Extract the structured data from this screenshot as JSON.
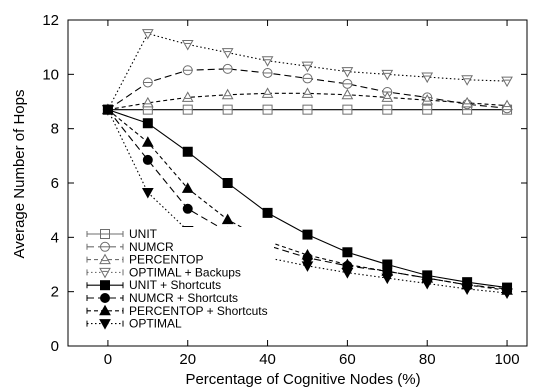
{
  "chart_data": {
    "type": "line",
    "title": "",
    "xlabel": "Percentage of Cognitive Nodes (%)",
    "ylabel": "Average Number of Hops",
    "xlim": [
      -10,
      105
    ],
    "ylim": [
      0,
      12
    ],
    "xticks": [
      0,
      20,
      40,
      60,
      80,
      100
    ],
    "yticks": [
      0,
      2,
      4,
      6,
      8,
      10,
      12
    ],
    "grid": false,
    "legend_position": "bottom-left",
    "x": [
      0,
      10,
      20,
      30,
      40,
      50,
      60,
      70,
      80,
      90,
      100
    ],
    "series": [
      {
        "name": "UNIT",
        "marker": "square-open",
        "dash": "solid",
        "color": "#6e6e6e",
        "values": [
          8.7,
          8.7,
          8.7,
          8.7,
          8.7,
          8.7,
          8.7,
          8.7,
          8.7,
          8.7,
          8.7
        ]
      },
      {
        "name": "NUMCR",
        "marker": "circle-open",
        "dash": "longdash",
        "color": "#6e6e6e",
        "values": [
          8.7,
          9.7,
          10.15,
          10.2,
          10.05,
          9.85,
          9.65,
          9.35,
          9.15,
          8.9,
          8.75
        ]
      },
      {
        "name": "PERCENTOP",
        "marker": "triangle-up-open",
        "dash": "shortdash",
        "color": "#6e6e6e",
        "values": [
          8.7,
          8.95,
          9.15,
          9.25,
          9.3,
          9.3,
          9.25,
          9.15,
          9.05,
          8.95,
          8.85
        ]
      },
      {
        "name": "OPTIMAL + Backups",
        "marker": "triangle-down-open",
        "dash": "dotted",
        "color": "#6e6e6e",
        "values": [
          8.7,
          11.5,
          11.1,
          10.8,
          10.5,
          10.3,
          10.1,
          10.0,
          9.9,
          9.8,
          9.75
        ]
      },
      {
        "name": "UNIT + Shortcuts",
        "marker": "square-filled",
        "dash": "solid",
        "color": "#000000",
        "values": [
          8.7,
          8.2,
          7.15,
          6.0,
          4.9,
          4.1,
          3.45,
          3.0,
          2.6,
          2.35,
          2.15
        ]
      },
      {
        "name": "NUMCR + Shortcuts",
        "marker": "circle-filled",
        "dash": "longdash",
        "color": "#000000",
        "values": [
          8.7,
          6.85,
          5.05,
          4.2,
          3.7,
          3.25,
          2.95,
          2.75,
          2.5,
          2.25,
          2.1
        ]
      },
      {
        "name": "PERCENTOP + Shortcuts",
        "marker": "triangle-up-filled",
        "dash": "shortdash",
        "color": "#000000",
        "values": [
          8.7,
          7.5,
          5.8,
          4.65,
          3.85,
          3.35,
          3.0,
          2.75,
          2.5,
          2.25,
          2.05
        ]
      },
      {
        "name": "OPTIMAL",
        "marker": "triangle-down-filled",
        "dash": "dotted",
        "color": "#000000",
        "values": [
          8.7,
          5.65,
          4.25,
          3.6,
          3.25,
          2.95,
          2.7,
          2.5,
          2.3,
          2.1,
          1.95
        ]
      }
    ]
  }
}
